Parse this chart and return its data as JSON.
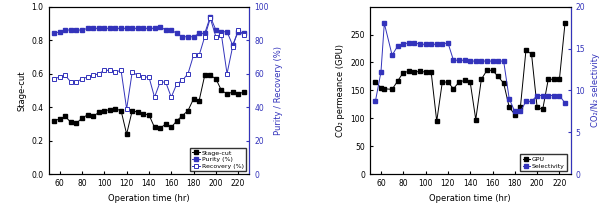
{
  "left": {
    "x": [
      55,
      60,
      65,
      70,
      75,
      80,
      85,
      90,
      95,
      100,
      105,
      110,
      115,
      120,
      125,
      130,
      135,
      140,
      145,
      150,
      155,
      160,
      165,
      170,
      175,
      180,
      185,
      190,
      195,
      200,
      205,
      210,
      215,
      220,
      225
    ],
    "stage_cut": [
      0.32,
      0.33,
      0.345,
      0.31,
      0.305,
      0.335,
      0.355,
      0.345,
      0.37,
      0.38,
      0.385,
      0.39,
      0.38,
      0.24,
      0.38,
      0.37,
      0.36,
      0.355,
      0.28,
      0.275,
      0.3,
      0.28,
      0.32,
      0.35,
      0.38,
      0.45,
      0.44,
      0.59,
      0.59,
      0.57,
      0.5,
      0.48,
      0.49,
      0.48,
      0.49
    ],
    "purity": [
      84,
      85,
      86,
      86,
      86,
      86,
      87,
      87,
      87,
      87,
      87,
      87,
      87,
      87,
      87,
      87,
      87,
      87,
      87,
      88,
      86,
      86,
      84,
      82,
      82,
      82,
      84,
      84,
      94,
      86,
      85,
      85,
      77,
      85,
      84
    ],
    "recovery": [
      57,
      58,
      59,
      55,
      55,
      57,
      58,
      59,
      60,
      62,
      62,
      61,
      62,
      39,
      61,
      59,
      58,
      58,
      46,
      55,
      55,
      46,
      54,
      56,
      60,
      71,
      71,
      82,
      93,
      82,
      83,
      60,
      76,
      86,
      83
    ],
    "ylabel_left": "Stage-cut",
    "ylabel_right": "Purity / Recovery (%)",
    "xlabel": "Operation time (hr)",
    "xlim": [
      50,
      230
    ],
    "ylim_left": [
      0.0,
      1.0
    ],
    "ylim_right": [
      0,
      100
    ],
    "yticks_left": [
      0.0,
      0.2,
      0.4,
      0.6,
      0.8,
      1.0
    ],
    "yticks_right": [
      0,
      20,
      40,
      60,
      80,
      100
    ],
    "xticks": [
      60,
      80,
      100,
      120,
      140,
      160,
      180,
      200,
      220
    ],
    "legend_labels": [
      "Stage-cut",
      "Purity (%)",
      "Recovery (%)"
    ]
  },
  "right": {
    "x": [
      55,
      60,
      63,
      70,
      75,
      80,
      85,
      90,
      95,
      100,
      105,
      110,
      115,
      120,
      125,
      130,
      135,
      140,
      145,
      150,
      155,
      160,
      165,
      170,
      175,
      180,
      185,
      190,
      195,
      200,
      205,
      210,
      215,
      220,
      225
    ],
    "gpu": [
      165,
      155,
      153,
      152,
      167,
      182,
      184,
      183,
      184,
      183,
      183,
      95,
      165,
      165,
      153,
      165,
      168,
      165,
      98,
      170,
      186,
      186,
      175,
      163,
      120,
      107,
      120,
      222,
      215,
      120,
      116,
      170,
      170,
      170,
      270
    ],
    "selectivity": [
      8.7,
      12.2,
      18.0,
      14.2,
      15.3,
      15.5,
      15.7,
      15.7,
      15.5,
      15.5,
      15.5,
      15.5,
      15.5,
      15.7,
      13.6,
      13.6,
      13.6,
      13.5,
      13.5,
      13.5,
      13.5,
      13.5,
      13.5,
      13.5,
      9.0,
      7.5,
      7.5,
      8.7,
      8.7,
      9.4,
      9.4,
      9.4,
      9.4,
      9.4,
      8.5
    ],
    "ylabel_left": "CO₂ permeance (GPU)",
    "ylabel_right": "CO₂/N₂ selectivity",
    "xlabel": "Operation time (hr)",
    "xlim": [
      50,
      230
    ],
    "ylim_left": [
      0,
      300
    ],
    "ylim_right": [
      0,
      20
    ],
    "yticks_left": [
      0,
      50,
      100,
      150,
      200,
      250
    ],
    "yticks_right": [
      0,
      5,
      10,
      15,
      20
    ],
    "xticks": [
      60,
      80,
      100,
      120,
      140,
      160,
      180,
      200,
      220
    ],
    "legend_labels": [
      "GPU",
      "Selectivity"
    ]
  },
  "black": "#000000",
  "blue": "#3333bb",
  "ms": 2.5,
  "lw": 0.7,
  "label_fontsize": 6,
  "tick_fontsize": 5.5,
  "legend_fontsize": 4.5
}
